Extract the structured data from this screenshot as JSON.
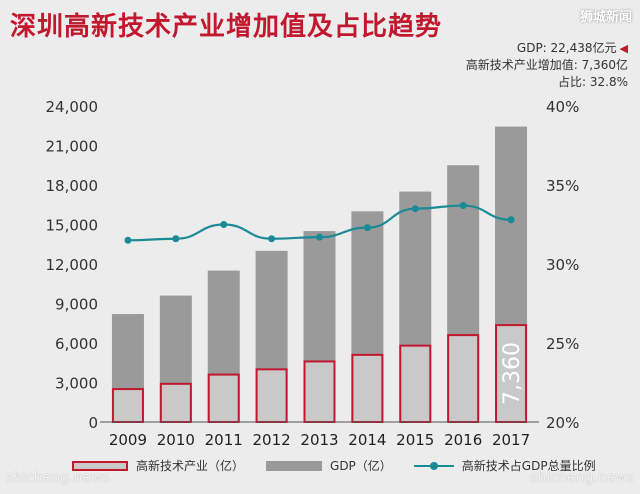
{
  "title": "深圳高新技术产业增加值及占比趋势",
  "watermark_top": "狮城新闻",
  "watermark_bottom_left": "shicheng.news",
  "watermark_bottom_right": "shicheng.news",
  "info": {
    "gdp": "GDP: 22,438亿元",
    "industry": "高新技术产业增加值: 7,360亿",
    "share": "占比: 32.8%"
  },
  "colors": {
    "accent": "#c2182e",
    "gdp_bar": "#9a9a9a",
    "industry_bar": "#c9c9c9",
    "line": "#1a8a96"
  },
  "chart_data": {
    "type": "bar",
    "categories": [
      "2009",
      "2010",
      "2011",
      "2012",
      "2013",
      "2014",
      "2015",
      "2016",
      "2017"
    ],
    "series": [
      {
        "name": "GDP（亿）",
        "type": "bar",
        "axis": "left",
        "values": [
          8200,
          9600,
          11500,
          13000,
          14500,
          16000,
          17500,
          19500,
          22438
        ]
      },
      {
        "name": "高新技术产业（亿）",
        "type": "bar",
        "axis": "left",
        "values": [
          2500,
          2900,
          3600,
          4000,
          4600,
          5100,
          5800,
          6600,
          7360
        ]
      },
      {
        "name": "高新技术占GDP总量比例",
        "type": "line",
        "axis": "right",
        "values": [
          31.5,
          31.6,
          32.5,
          31.6,
          31.7,
          32.3,
          33.5,
          33.7,
          32.8
        ]
      }
    ],
    "ylim_left": [
      0,
      24000
    ],
    "yticks_left": [
      "0",
      "3,000",
      "6,000",
      "9,000",
      "12,000",
      "15,000",
      "18,000",
      "21,000",
      "24,000"
    ],
    "ylim_right": [
      20,
      40
    ],
    "yticks_right": [
      "20%",
      "25%",
      "30%",
      "35%",
      "40%"
    ],
    "bar_label": "7,360",
    "legend_position": "bottom",
    "grid": false
  }
}
